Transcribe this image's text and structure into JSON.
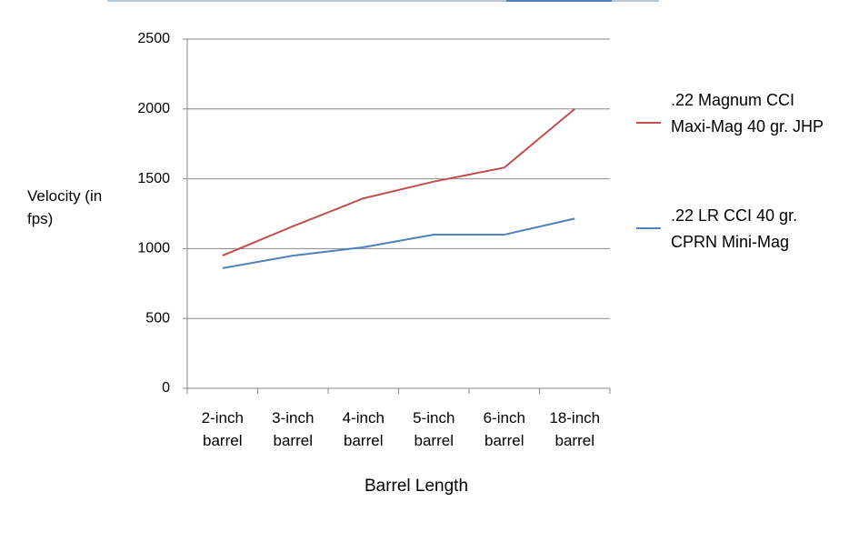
{
  "chart_data": {
    "type": "line",
    "x_label": "Barrel Length",
    "y_label": "Velocity (in fps)",
    "categories": [
      "2-inch barrel",
      "3-inch barrel",
      "4-inch barrel",
      "5-inch barrel",
      "6-inch barrel",
      "18-inch barrel"
    ],
    "series": [
      {
        "name": ".22 Magnum CCI Maxi-Mag 40 gr. JHP",
        "color": "#c0504d",
        "values": [
          950,
          1160,
          1360,
          1480,
          1580,
          2000
        ]
      },
      {
        "name": ".22 LR CCI 40 gr. CPRN Mini-Mag",
        "color": "#4f81bd",
        "values": [
          860,
          950,
          1010,
          1100,
          1100,
          1215
        ]
      }
    ],
    "ylim": [
      0,
      2500
    ],
    "yticks": [
      0,
      500,
      1000,
      1500,
      2000,
      2500
    ],
    "grid": true,
    "legend": "right"
  }
}
